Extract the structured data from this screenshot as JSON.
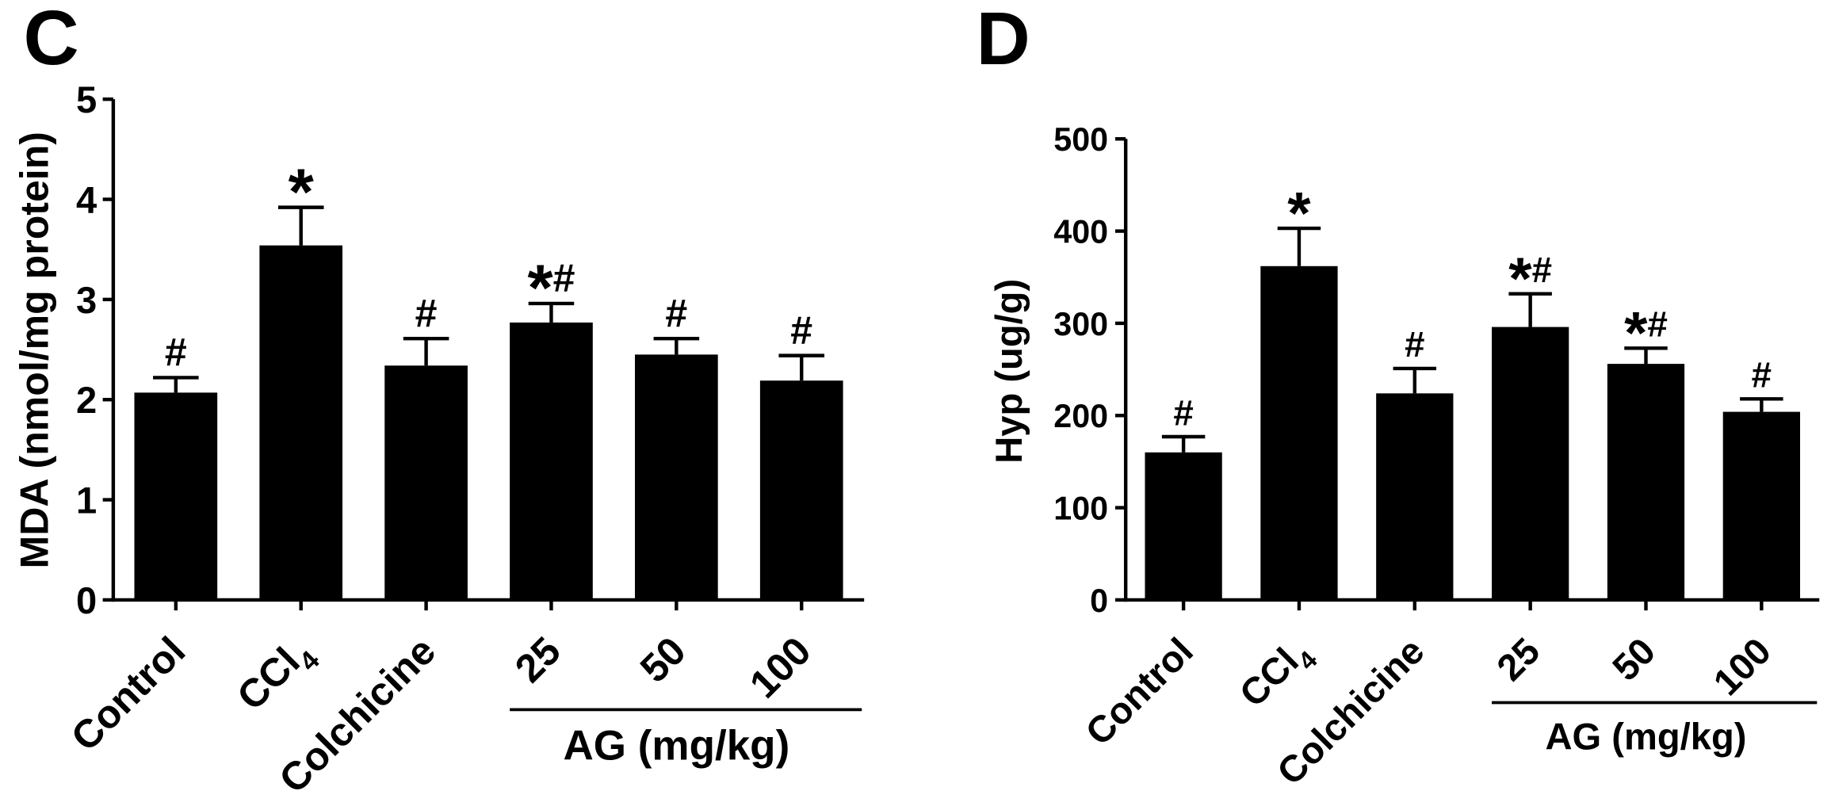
{
  "colors": {
    "bar": "#000000",
    "axis": "#000000",
    "background": "#ffffff"
  },
  "chart_data": [
    {
      "panel": "C",
      "type": "bar",
      "categories": [
        "Control",
        "CCl4",
        "Colchicine",
        "25",
        "50",
        "100"
      ],
      "values": [
        2.07,
        3.54,
        2.34,
        2.77,
        2.45,
        2.19
      ],
      "error": [
        0.15,
        0.38,
        0.27,
        0.19,
        0.16,
        0.25
      ],
      "annotations": [
        "#",
        "*",
        "#",
        "*#",
        "#",
        "#"
      ],
      "ylabel": "MDA (nmol/mg protein)",
      "ylim": [
        0,
        5
      ],
      "yticks": [
        0,
        1,
        2,
        3,
        4,
        5
      ],
      "grid": false,
      "group": {
        "label": "AG (mg/kg)",
        "from": 3,
        "to": 5
      }
    },
    {
      "panel": "D",
      "type": "bar",
      "categories": [
        "Control",
        "CCl4",
        "Colchicine",
        "25",
        "50",
        "100"
      ],
      "values": [
        160,
        362,
        224,
        296,
        256,
        204
      ],
      "error": [
        17,
        41,
        27,
        36,
        17,
        14
      ],
      "annotations": [
        "#",
        "*",
        "#",
        "*#",
        "*#",
        "#"
      ],
      "ylabel": "Hyp (ug/g)",
      "ylim": [
        0,
        500
      ],
      "yticks": [
        0,
        100,
        200,
        300,
        400,
        500
      ],
      "grid": false,
      "group": {
        "label": "AG (mg/kg)",
        "from": 3,
        "to": 5
      }
    }
  ]
}
